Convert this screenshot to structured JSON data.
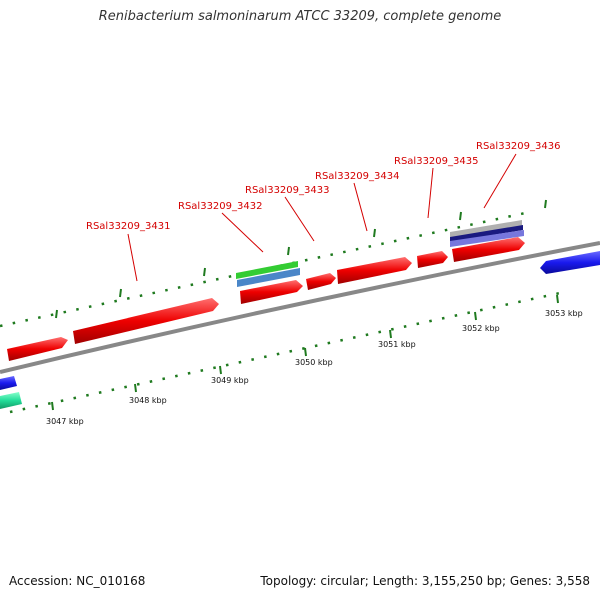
{
  "title": "Renibacterium salmoninarum ATCC 33209, complete genome",
  "footer": {
    "accession": "Accession: NC_010168",
    "summary": "Topology: circular; Length: 3,155,250 bp; Genes: 3,558"
  },
  "colors": {
    "cds": "#ee0000",
    "backbone": "#888888",
    "ticks": "#1f7a1f",
    "label_lines": "#d40000",
    "rrna_green": "#33cc33",
    "rrna_blue": "#4a86c8",
    "blue_feature": "#1a1aee",
    "teal_feature": "#22dd99",
    "navy_feature": "#1a1a80",
    "grey_feature": "#b0b0b0",
    "violet_feature": "#7777dd"
  },
  "scale": {
    "unit": "kbp",
    "tick_labels": [
      "3047 kbp",
      "3048 kbp",
      "3049 kbp",
      "3050 kbp",
      "3051 kbp",
      "3052 kbp",
      "3053 kbp"
    ]
  },
  "gene_labels": [
    "RSal33209_3431",
    "RSal33209_3432",
    "RSal33209_3433",
    "RSal33209_3434",
    "RSal33209_3435",
    "RSal33209_3436"
  ]
}
